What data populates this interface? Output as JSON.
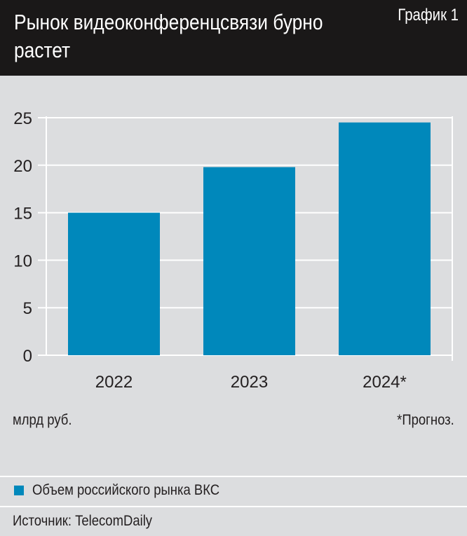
{
  "header": {
    "title": "Рынок видеоконференцсвязи бурно растет",
    "label": "График 1"
  },
  "chart_data": {
    "type": "bar",
    "categories": [
      "2022",
      "2023",
      "2024*"
    ],
    "series": [
      {
        "name": "Объем российского рынка ВКС",
        "values": [
          15,
          19.8,
          24.5
        ],
        "color": "#0088bb"
      }
    ],
    "ylim": [
      0,
      25
    ],
    "yticks": [
      0,
      5,
      10,
      15,
      20,
      25
    ],
    "ylabel": "млрд руб.",
    "grid": true,
    "annotation": "*Прогноз.",
    "legend": "bottom"
  },
  "source": "Источник: TelecomDaily"
}
